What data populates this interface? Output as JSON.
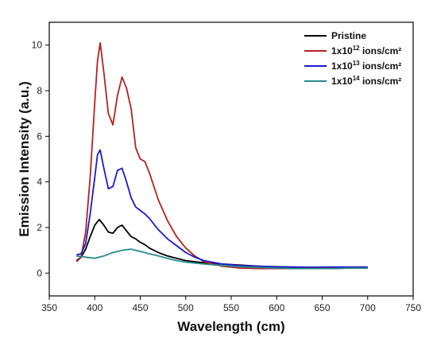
{
  "chart_data": {
    "type": "line",
    "title": "",
    "xlabel": "Wavelength (cm)",
    "ylabel": "Emission Intensity (a.u.)",
    "xlim": [
      350,
      750
    ],
    "ylim": [
      -1,
      11
    ],
    "xticks": [
      "350",
      "400",
      "450",
      "500",
      "550",
      "600",
      "650",
      "700",
      "750"
    ],
    "yticks": [
      "0",
      "2",
      "4",
      "6",
      "8",
      "10"
    ],
    "legend_position": "top-right",
    "series": [
      {
        "name": "Pristine",
        "legend": {
          "base": "Pristine",
          "sup": "",
          "suffix": ""
        },
        "color": "#000000",
        "x": [
          380,
          385,
          390,
          395,
          400,
          405,
          410,
          415,
          420,
          425,
          430,
          435,
          440,
          445,
          450,
          455,
          460,
          470,
          480,
          490,
          500,
          520,
          540,
          560,
          580,
          600,
          620,
          640,
          660,
          680,
          700
        ],
        "y": [
          0.55,
          0.7,
          1.05,
          1.6,
          2.1,
          2.35,
          2.1,
          1.8,
          1.75,
          2.0,
          2.1,
          1.85,
          1.6,
          1.5,
          1.35,
          1.25,
          1.1,
          0.9,
          0.75,
          0.65,
          0.55,
          0.45,
          0.4,
          0.35,
          0.3,
          0.25,
          0.22,
          0.2,
          0.2,
          0.22,
          0.22
        ]
      },
      {
        "name": "1x10^12 ions/cm^2",
        "legend": {
          "base": "1x10",
          "sup": "12",
          "suffix": " ions/cm²"
        },
        "color": "#b22222",
        "x": [
          380,
          385,
          390,
          395,
          400,
          403,
          406,
          410,
          415,
          420,
          425,
          430,
          435,
          440,
          445,
          450,
          455,
          460,
          465,
          470,
          480,
          490,
          500,
          510,
          520,
          540,
          560,
          580,
          600,
          620,
          640,
          660,
          680,
          700
        ],
        "y": [
          0.5,
          0.7,
          1.8,
          4.2,
          7.5,
          9.3,
          10.1,
          8.8,
          7.0,
          6.5,
          7.8,
          8.6,
          8.1,
          7.2,
          5.5,
          5.0,
          4.9,
          4.4,
          3.8,
          3.2,
          2.3,
          1.6,
          1.1,
          0.75,
          0.5,
          0.3,
          0.22,
          0.2,
          0.2,
          0.2,
          0.22,
          0.24,
          0.25,
          0.25
        ]
      },
      {
        "name": "1x10^13 ions/cm^2",
        "legend": {
          "base": "1x10",
          "sup": "13",
          "suffix": " ions/cm²"
        },
        "color": "#1a1acc",
        "x": [
          380,
          385,
          390,
          395,
          400,
          403,
          406,
          410,
          415,
          420,
          425,
          430,
          435,
          440,
          445,
          450,
          455,
          460,
          470,
          480,
          490,
          500,
          510,
          520,
          540,
          560,
          580,
          600,
          620,
          640,
          660,
          680,
          700
        ],
        "y": [
          0.8,
          0.85,
          1.3,
          2.6,
          4.2,
          5.2,
          5.4,
          4.6,
          3.7,
          3.8,
          4.5,
          4.6,
          4.0,
          3.3,
          2.9,
          2.75,
          2.6,
          2.4,
          1.9,
          1.5,
          1.2,
          0.9,
          0.7,
          0.55,
          0.4,
          0.33,
          0.3,
          0.28,
          0.27,
          0.26,
          0.27,
          0.27,
          0.27
        ]
      },
      {
        "name": "1x10^14 ions/cm^2",
        "legend": {
          "base": "1x10",
          "sup": "14",
          "suffix": " ions/cm²"
        },
        "color": "#2a8a8a",
        "x": [
          380,
          390,
          400,
          410,
          420,
          430,
          440,
          450,
          460,
          470,
          480,
          490,
          500,
          520,
          540,
          560,
          580,
          600,
          620,
          640,
          660,
          680,
          700
        ],
        "y": [
          0.75,
          0.7,
          0.65,
          0.75,
          0.9,
          1.0,
          1.05,
          0.95,
          0.85,
          0.75,
          0.65,
          0.55,
          0.48,
          0.4,
          0.33,
          0.28,
          0.25,
          0.22,
          0.2,
          0.2,
          0.2,
          0.22,
          0.22
        ]
      }
    ]
  }
}
